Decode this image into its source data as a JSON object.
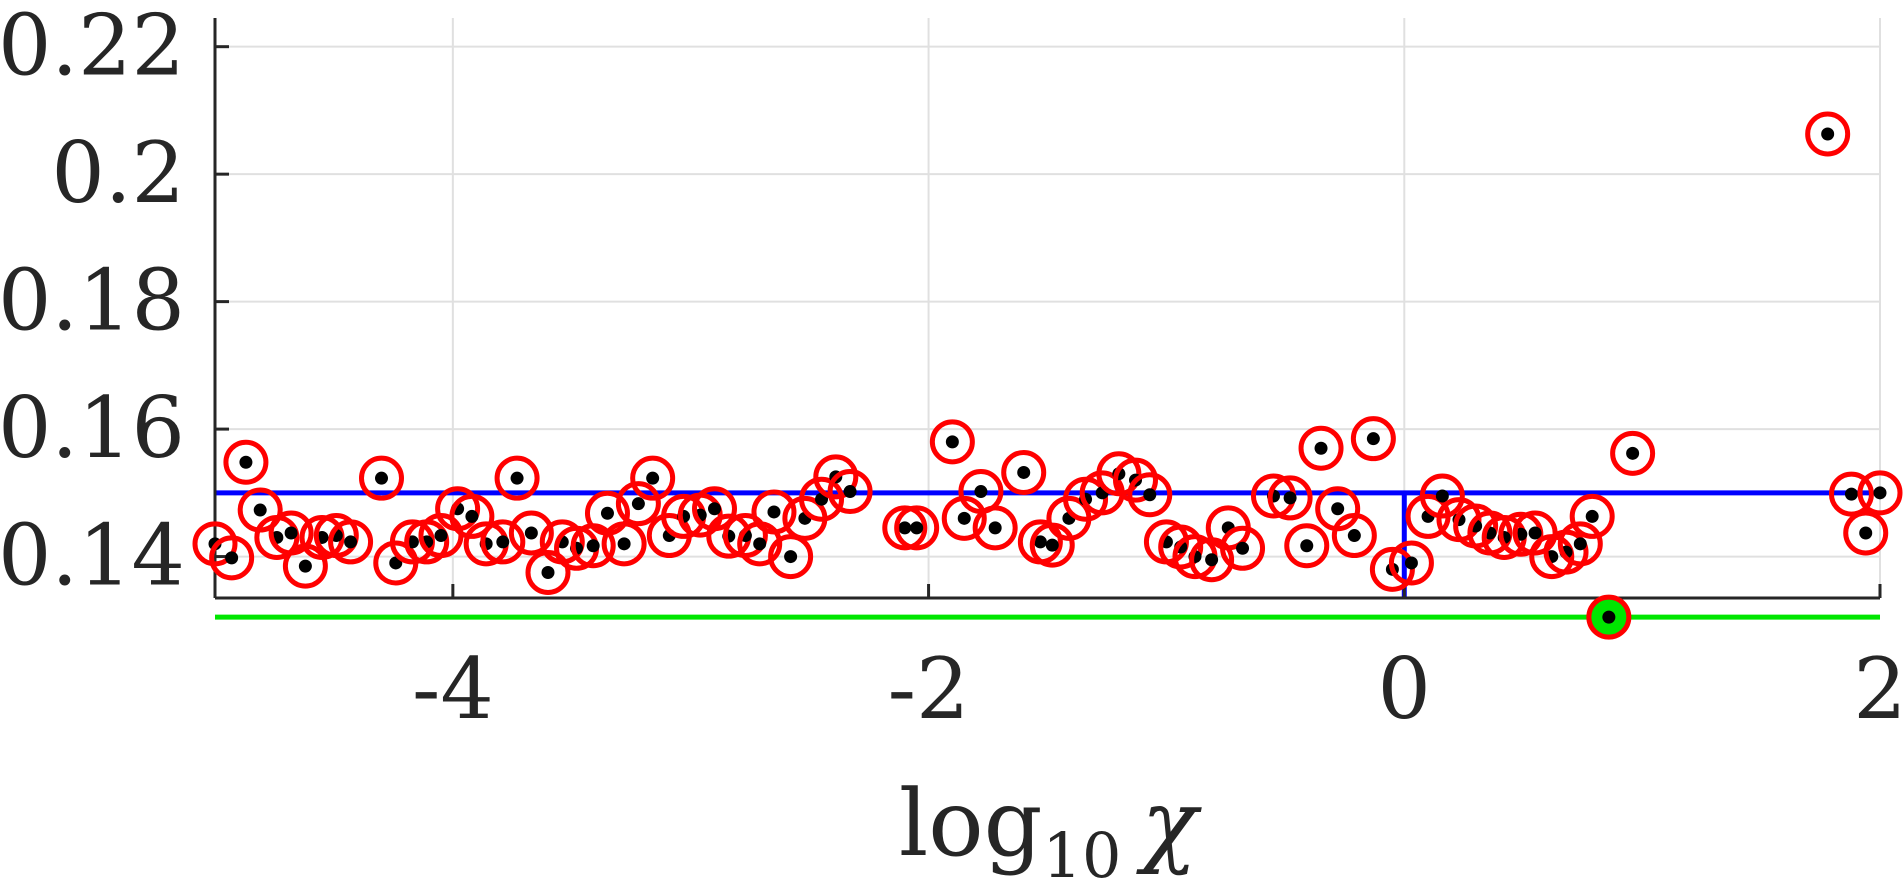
{
  "chart_data": {
    "type": "scatter",
    "xlabel": "log10 χ",
    "xlabel_parts": {
      "base": "log",
      "subscript": "10",
      "symbol": "χ"
    },
    "ylabel": "",
    "xlim": [
      -5,
      2
    ],
    "ylim": [
      0.1335,
      0.2245
    ],
    "xticks": [
      -4,
      -2,
      0,
      2
    ],
    "yticks": [
      0.14,
      0.16,
      0.18,
      0.2,
      0.22
    ],
    "xtick_labels": [
      "-4",
      "-2",
      "0",
      "2"
    ],
    "ytick_labels": [
      "0.14",
      "0.16",
      "0.18",
      "0.2",
      "0.22"
    ],
    "grid": true,
    "colors": {
      "points": "#000000",
      "circles": "#ff0000",
      "reference_line": "#0000ff",
      "minimum_line": "#00e600",
      "grid": "#e0e0e0",
      "axes": "#262626"
    },
    "reference": {
      "x": 0,
      "y": 0.15
    },
    "minimum": {
      "x": 0.86,
      "y": 0.1305
    },
    "points": [
      [
        -5.0,
        0.142
      ],
      [
        -4.93,
        0.1398
      ],
      [
        -4.87,
        0.1548
      ],
      [
        -4.81,
        0.1473
      ],
      [
        -4.74,
        0.143
      ],
      [
        -4.68,
        0.1437
      ],
      [
        -4.62,
        0.1385
      ],
      [
        -4.55,
        0.143
      ],
      [
        -4.49,
        0.1433
      ],
      [
        -4.43,
        0.1423
      ],
      [
        -4.3,
        0.1523
      ],
      [
        -4.24,
        0.139
      ],
      [
        -4.17,
        0.1423
      ],
      [
        -4.11,
        0.1423
      ],
      [
        -4.05,
        0.1433
      ],
      [
        -3.98,
        0.1475
      ],
      [
        -3.92,
        0.1463
      ],
      [
        -3.86,
        0.142
      ],
      [
        -3.79,
        0.1423
      ],
      [
        -3.73,
        0.1523
      ],
      [
        -3.67,
        0.1437
      ],
      [
        -3.6,
        0.1375
      ],
      [
        -3.54,
        0.1423
      ],
      [
        -3.48,
        0.1413
      ],
      [
        -3.41,
        0.1417
      ],
      [
        -3.35,
        0.1468
      ],
      [
        -3.28,
        0.142
      ],
      [
        -3.22,
        0.1483
      ],
      [
        -3.16,
        0.1523
      ],
      [
        -3.09,
        0.1433
      ],
      [
        -3.03,
        0.1463
      ],
      [
        -2.96,
        0.1465
      ],
      [
        -2.9,
        0.1475
      ],
      [
        -2.84,
        0.1432
      ],
      [
        -2.77,
        0.1433
      ],
      [
        -2.71,
        0.142
      ],
      [
        -2.65,
        0.147
      ],
      [
        -2.58,
        0.14
      ],
      [
        -2.52,
        0.146
      ],
      [
        -2.45,
        0.149
      ],
      [
        -2.39,
        0.1525
      ],
      [
        -2.33,
        0.1502
      ],
      [
        -2.1,
        0.1445
      ],
      [
        -2.05,
        0.1445
      ],
      [
        -1.9,
        0.158
      ],
      [
        -1.85,
        0.146
      ],
      [
        -1.78,
        0.1502
      ],
      [
        -1.72,
        0.1445
      ],
      [
        -1.6,
        0.1532
      ],
      [
        -1.53,
        0.1423
      ],
      [
        -1.48,
        0.1418
      ],
      [
        -1.41,
        0.146
      ],
      [
        -1.34,
        0.149
      ],
      [
        -1.27,
        0.15
      ],
      [
        -1.2,
        0.153
      ],
      [
        -1.13,
        0.152
      ],
      [
        -1.07,
        0.1497
      ],
      [
        -1.0,
        0.1423
      ],
      [
        -0.94,
        0.1415
      ],
      [
        -0.88,
        0.14
      ],
      [
        -0.81,
        0.1395
      ],
      [
        -0.74,
        0.1445
      ],
      [
        -0.68,
        0.1413
      ],
      [
        -0.55,
        0.1495
      ],
      [
        -0.48,
        0.1492
      ],
      [
        -0.41,
        0.1417
      ],
      [
        -0.35,
        0.157
      ],
      [
        -0.28,
        0.1475
      ],
      [
        -0.21,
        0.1433
      ],
      [
        -0.13,
        0.1585
      ],
      [
        -0.05,
        0.138
      ],
      [
        0.03,
        0.139
      ],
      [
        0.1,
        0.1463
      ],
      [
        0.16,
        0.1495
      ],
      [
        0.23,
        0.1458
      ],
      [
        0.3,
        0.1448
      ],
      [
        0.36,
        0.1437
      ],
      [
        0.42,
        0.143
      ],
      [
        0.49,
        0.1435
      ],
      [
        0.55,
        0.1437
      ],
      [
        0.62,
        0.14
      ],
      [
        0.68,
        0.1407
      ],
      [
        0.74,
        0.142
      ],
      [
        0.79,
        0.1463
      ],
      [
        0.96,
        0.1562
      ],
      [
        1.78,
        0.2063
      ],
      [
        1.88,
        0.1498
      ],
      [
        1.94,
        0.1437
      ],
      [
        2.0,
        0.15
      ]
    ]
  }
}
